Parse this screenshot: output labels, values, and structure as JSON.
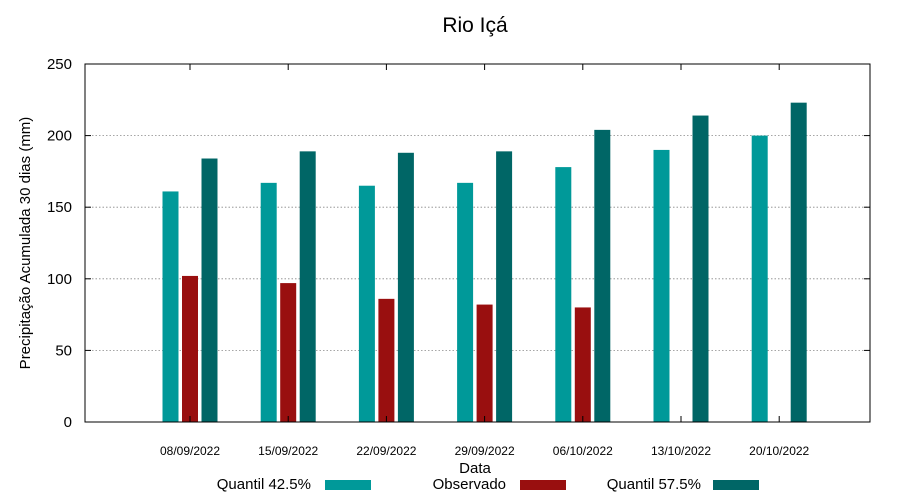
{
  "chart_data": {
    "type": "bar",
    "title": "Rio Içá",
    "xlabel": "Data",
    "ylabel": "Precipitação Acumulada 30 dias (mm)",
    "ylim": [
      0,
      250
    ],
    "yticks": [
      0,
      50,
      100,
      150,
      200,
      250
    ],
    "grid": true,
    "legend_position": "bottom",
    "categories": [
      "08/09/2022",
      "15/09/2022",
      "22/09/2022",
      "29/09/2022",
      "06/10/2022",
      "13/10/2022",
      "20/10/2022"
    ],
    "series": [
      {
        "name": "Quantil 42.5%",
        "color": "#009999",
        "values": [
          161,
          167,
          165,
          167,
          178,
          190,
          200
        ]
      },
      {
        "name": "Observado",
        "color": "#990f0f",
        "values": [
          102,
          97,
          86,
          82,
          80,
          null,
          null
        ]
      },
      {
        "name": "Quantil 57.5%",
        "color": "#006666",
        "values": [
          184,
          189,
          188,
          189,
          204,
          214,
          223
        ]
      }
    ]
  }
}
